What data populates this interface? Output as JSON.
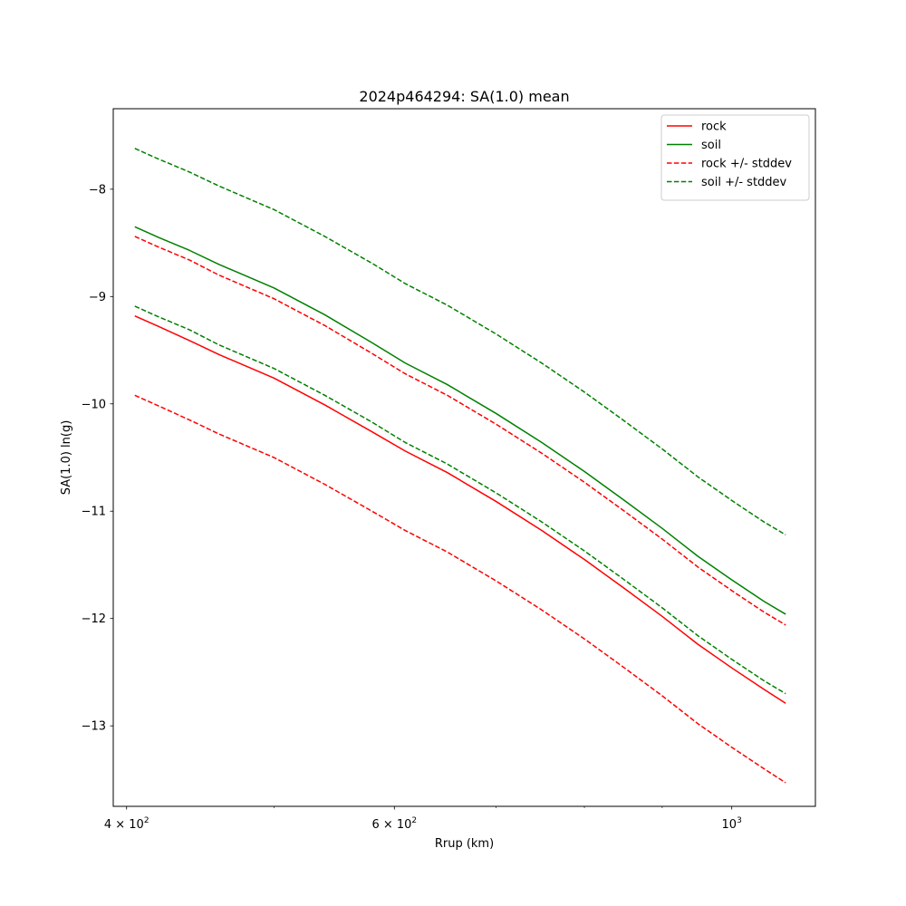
{
  "chart_data": {
    "type": "line",
    "title": "2024p464294: SA(1.0) mean",
    "xlabel": "Rrup (km)",
    "ylabel": "SA(1.0) ln(g)",
    "xscale": "log",
    "xlim": [
      392,
      1135
    ],
    "ylim": [
      -13.75,
      -7.25
    ],
    "x_ticks": [
      {
        "value": 400,
        "base": "4",
        "exp": "2"
      },
      {
        "value": 600,
        "base": "6",
        "exp": "2"
      },
      {
        "value": 1000,
        "base": "",
        "exp": "3"
      }
    ],
    "y_ticks": [
      {
        "value": -8,
        "label": "−8"
      },
      {
        "value": -9,
        "label": "−9"
      },
      {
        "value": -10,
        "label": "−10"
      },
      {
        "value": -11,
        "label": "−11"
      },
      {
        "value": -12,
        "label": "−12"
      },
      {
        "value": -13,
        "label": "−13"
      }
    ],
    "x": [
      405,
      420,
      440,
      460,
      500,
      540,
      580,
      610,
      650,
      700,
      750,
      800,
      850,
      900,
      950,
      1000,
      1050,
      1085
    ],
    "series": [
      {
        "name": "rock",
        "color": "#ff0000",
        "dash": "solid",
        "values": [
          -9.18,
          -9.28,
          -9.41,
          -9.54,
          -9.76,
          -10.01,
          -10.26,
          -10.44,
          -10.64,
          -10.91,
          -11.18,
          -11.45,
          -11.72,
          -11.98,
          -12.24,
          -12.46,
          -12.66,
          -12.79
        ]
      },
      {
        "name": "soil",
        "color": "#008000",
        "dash": "solid",
        "values": [
          -8.35,
          -8.45,
          -8.57,
          -8.7,
          -8.92,
          -9.17,
          -9.43,
          -9.62,
          -9.82,
          -10.09,
          -10.36,
          -10.63,
          -10.9,
          -11.16,
          -11.42,
          -11.64,
          -11.84,
          -11.96
        ]
      },
      {
        "name": "rock +/- stddev",
        "color": "#ff0000",
        "dash": "dashed",
        "values": [
          -8.44,
          -8.54,
          -8.66,
          -8.8,
          -9.02,
          -9.27,
          -9.53,
          -9.72,
          -9.92,
          -10.19,
          -10.46,
          -10.73,
          -11.0,
          -11.26,
          -11.52,
          -11.74,
          -11.94,
          -12.06
        ]
      },
      {
        "name": "rock +/- stddev",
        "color": "#ff0000",
        "dash": "dashed",
        "in_legend": false,
        "values": [
          -9.92,
          -10.02,
          -10.15,
          -10.28,
          -10.5,
          -10.75,
          -11.0,
          -11.18,
          -11.38,
          -11.65,
          -11.92,
          -12.19,
          -12.46,
          -12.72,
          -12.98,
          -13.2,
          -13.4,
          -13.53
        ]
      },
      {
        "name": "soil +/- stddev",
        "color": "#008000",
        "dash": "dashed",
        "values": [
          -7.62,
          -7.72,
          -7.84,
          -7.97,
          -8.19,
          -8.44,
          -8.69,
          -8.88,
          -9.08,
          -9.35,
          -9.62,
          -9.89,
          -10.16,
          -10.42,
          -10.68,
          -10.9,
          -11.1,
          -11.22
        ]
      },
      {
        "name": "soil +/- stddev",
        "color": "#008000",
        "dash": "dashed",
        "in_legend": false,
        "values": [
          -9.09,
          -9.19,
          -9.31,
          -9.45,
          -9.67,
          -9.92,
          -10.17,
          -10.36,
          -10.56,
          -10.83,
          -11.1,
          -11.37,
          -11.64,
          -11.9,
          -12.16,
          -12.38,
          -12.58,
          -12.7
        ]
      }
    ],
    "legend": {
      "placement": "top-right",
      "entries": [
        {
          "label": "rock",
          "color": "#ff0000",
          "dash": "solid"
        },
        {
          "label": "soil",
          "color": "#008000",
          "dash": "solid"
        },
        {
          "label": "rock +/- stddev",
          "color": "#ff0000",
          "dash": "dashed"
        },
        {
          "label": "soil +/- stddev",
          "color": "#008000",
          "dash": "dashed"
        }
      ]
    },
    "grid": false
  }
}
